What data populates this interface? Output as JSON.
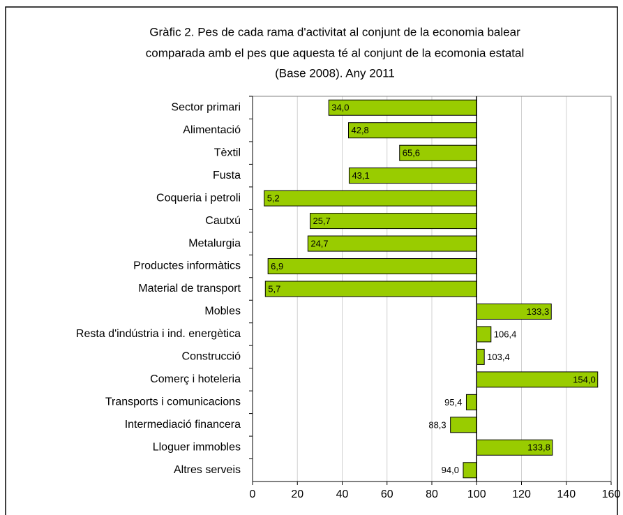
{
  "chart_data": {
    "type": "bar",
    "orientation": "horizontal",
    "title": [
      "Gràfic 2. Pes de cada rama d'activitat al conjunt de la economia balear",
      "comparada amb el pes que aquesta té al conjunt de la ecomonia estatal",
      "(Base 2008). Any 2011"
    ],
    "categories": [
      "Sector primari",
      "Alimentació",
      "Tèxtil",
      "Fusta",
      "Coqueria i petroli",
      "Cautxú",
      "Metalurgia",
      "Productes  informàtics",
      "Material de transport",
      "Mobles",
      "Resta d'indústria i ind. energètica",
      "Construcció",
      "Comerç i hoteleria",
      "Transports i comunicacions",
      "Intermediació financera",
      "Lloguer immobles",
      "Altres serveis"
    ],
    "values": [
      34.0,
      42.8,
      65.6,
      43.1,
      5.2,
      25.7,
      24.7,
      6.9,
      5.7,
      133.3,
      106.4,
      103.4,
      154.0,
      95.4,
      88.3,
      133.8,
      94.0
    ],
    "value_labels": [
      "34,0",
      "42,8",
      "65,6",
      "43,1",
      "5,2",
      "25,7",
      "24,7",
      "6,9",
      "5,7",
      "133,3",
      "106,4",
      "103,4",
      "154,0",
      "95,4",
      "88,3",
      "133,8",
      "94,0"
    ],
    "color": "#99cc00",
    "baseline": 100,
    "xlim": [
      0,
      160
    ],
    "xticks": [
      0,
      20,
      40,
      60,
      80,
      100,
      120,
      140,
      160
    ],
    "grid": true
  }
}
